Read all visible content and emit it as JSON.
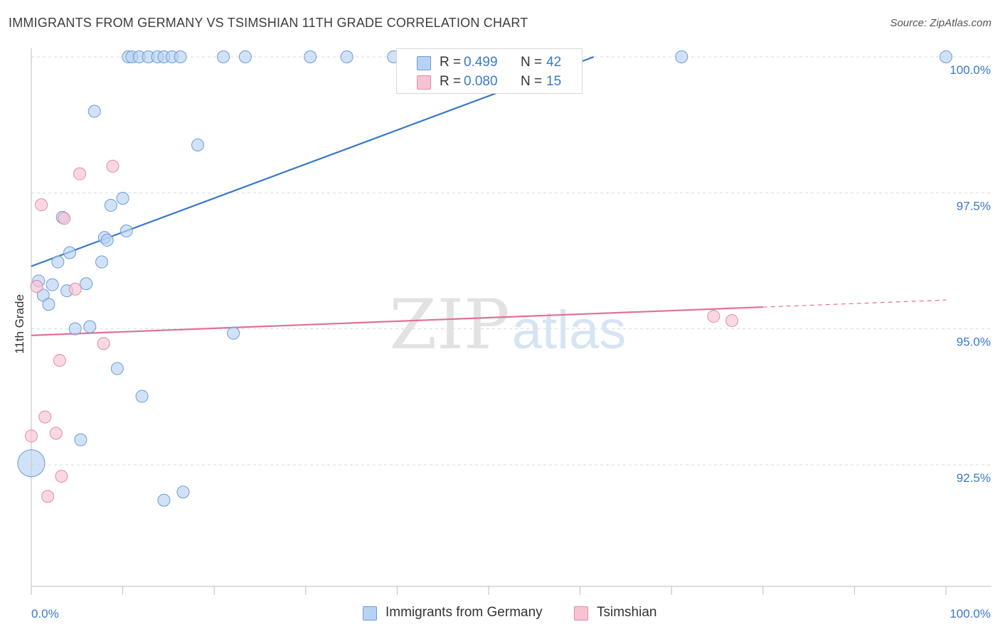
{
  "title": "IMMIGRANTS FROM GERMANY VS TSIMSHIAN 11TH GRADE CORRELATION CHART",
  "source": "Source: ZipAtlas.com",
  "watermark": {
    "zip": "ZIP",
    "atlas": "atlas"
  },
  "colors": {
    "blue": "#3a78c9",
    "blue_fill": "#b8d3f2",
    "pink": "#e07099",
    "pink_fill": "#f7c3d3",
    "grid": "#d9d9d9",
    "axis": "#bdbdbd"
  },
  "legend": {
    "r_label": "R =",
    "n_label": "N =",
    "rows": [
      {
        "r": "0.499",
        "n": "42"
      },
      {
        "r": "0.080",
        "n": "15"
      }
    ]
  },
  "chart_data": {
    "type": "scatter",
    "title": "IMMIGRANTS FROM GERMANY VS TSIMSHIAN 11TH GRADE CORRELATION CHART",
    "xlabel": "",
    "ylabel": "11th Grade",
    "xlim": [
      0,
      100
    ],
    "ylim": [
      90.0,
      100.3
    ],
    "x_tick_labels": [
      "0.0%",
      "100.0%"
    ],
    "y_ticks": [
      {
        "value": 100.0,
        "label": "100.0%"
      },
      {
        "value": 97.5,
        "label": "97.5%"
      },
      {
        "value": 95.0,
        "label": "95.0%"
      },
      {
        "value": 92.5,
        "label": "92.5%"
      }
    ],
    "grid": "horizontal-dashed",
    "legend_position": "top-center",
    "series": [
      {
        "name": "Immigrants from Germany",
        "color": "#3a78c9",
        "points": [
          [
            10.6,
            100.0
          ],
          [
            11.0,
            100.0
          ],
          [
            11.8,
            100.0
          ],
          [
            12.8,
            100.0
          ],
          [
            13.8,
            100.0
          ],
          [
            14.5,
            100.0
          ],
          [
            15.4,
            100.0
          ],
          [
            16.3,
            100.0
          ],
          [
            21.0,
            100.0
          ],
          [
            23.4,
            100.0
          ],
          [
            30.5,
            100.0
          ],
          [
            34.5,
            100.0
          ],
          [
            39.6,
            100.0
          ],
          [
            44.8,
            100.0
          ],
          [
            71.1,
            100.0
          ],
          [
            100.0,
            100.0
          ],
          [
            6.9,
            99.0
          ],
          [
            18.2,
            98.38
          ],
          [
            10.0,
            97.4
          ],
          [
            8.7,
            97.27
          ],
          [
            3.4,
            97.05
          ],
          [
            10.4,
            96.8
          ],
          [
            8.0,
            96.68
          ],
          [
            8.3,
            96.63
          ],
          [
            4.2,
            96.4
          ],
          [
            2.9,
            96.23
          ],
          [
            7.7,
            96.23
          ],
          [
            0.8,
            95.88
          ],
          [
            2.3,
            95.81
          ],
          [
            6.0,
            95.83
          ],
          [
            1.3,
            95.62
          ],
          [
            3.9,
            95.7
          ],
          [
            1.9,
            95.45
          ],
          [
            4.8,
            95.0
          ],
          [
            6.4,
            95.04
          ],
          [
            22.1,
            94.92
          ],
          [
            9.4,
            94.27
          ],
          [
            12.1,
            93.76
          ],
          [
            5.4,
            92.96
          ],
          [
            0.0,
            92.53
          ],
          [
            16.6,
            92.0
          ],
          [
            14.5,
            91.85
          ]
        ],
        "trendline": {
          "x": [
            0.0,
            61.5
          ],
          "y": [
            96.15,
            100.0
          ]
        }
      },
      {
        "name": "Tsimshian",
        "color": "#e07099",
        "points": [
          [
            5.3,
            97.85
          ],
          [
            8.9,
            97.99
          ],
          [
            1.1,
            97.28
          ],
          [
            3.6,
            97.03
          ],
          [
            0.6,
            95.78
          ],
          [
            4.8,
            95.73
          ],
          [
            7.9,
            94.73
          ],
          [
            3.1,
            94.42
          ],
          [
            1.5,
            93.38
          ],
          [
            2.7,
            93.08
          ],
          [
            0.0,
            93.03
          ],
          [
            3.3,
            92.29
          ],
          [
            1.8,
            91.92
          ],
          [
            74.6,
            95.23
          ],
          [
            76.6,
            95.15
          ]
        ],
        "trendline": {
          "x": [
            0.0,
            80.0
          ],
          "y": [
            94.88,
            95.4
          ],
          "dashed_x": [
            80.0,
            100.0
          ],
          "dashed_y": [
            95.4,
            95.53
          ]
        }
      }
    ],
    "bubble_sizes_note": "one large point at x=0.0, y=92.53 in the blue series"
  }
}
